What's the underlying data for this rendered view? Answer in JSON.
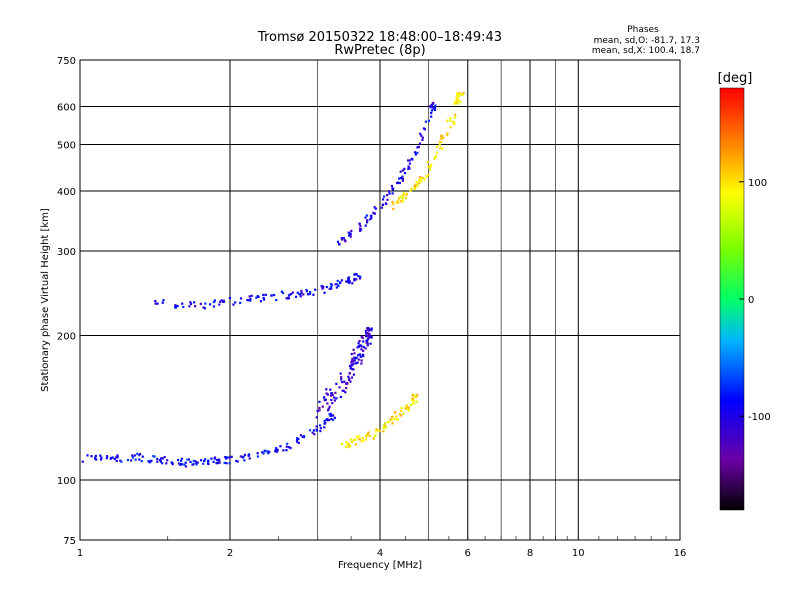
{
  "chart_data": {
    "type": "scatter",
    "title": "Tromsø 20150322 18:48:00–18:49:43",
    "subtitle": "RwPretec (8p)",
    "xlabel": "Frequency [MHz]",
    "ylabel": "Stationary phase Virtual Height [km]",
    "x_scale": "log",
    "y_scale": "log",
    "xlim": [
      1,
      16
    ],
    "ylim": [
      75,
      750
    ],
    "x_ticks": [
      1,
      2,
      4,
      6,
      8,
      10,
      16
    ],
    "x_tick_labels": [
      "1",
      "2",
      "4",
      "6",
      "8",
      "10",
      "16"
    ],
    "x_minor_gridlines": [
      3,
      5,
      7,
      9
    ],
    "y_ticks": [
      75,
      100,
      200,
      300,
      400,
      500,
      600,
      750
    ],
    "y_tick_labels": [
      "75",
      "100",
      "200",
      "300",
      "400",
      "500",
      "600",
      "750"
    ],
    "grid": true,
    "phase_box": {
      "title": "Phases",
      "line_o": "mean, sd,O: -81.7, 17.3",
      "line_x": "mean, sd,X: 100.4, 18.7"
    },
    "colorbar": {
      "unit_label": "[deg]",
      "range": [
        -180,
        180
      ],
      "ticks": [
        100,
        0,
        -100
      ],
      "tick_labels": [
        "100",
        "0",
        "-100"
      ]
    },
    "traces": [
      {
        "mode": "O",
        "layer": "E",
        "phase_mean": -90,
        "x": [
          1.0,
          1.1,
          1.2,
          1.3,
          1.4,
          1.5,
          1.6,
          1.7,
          1.8,
          1.9,
          2.0,
          2.2,
          2.4,
          2.6,
          2.8,
          3.0,
          3.2
        ],
        "y": [
          110,
          112,
          111,
          112,
          110,
          110,
          109,
          108,
          109,
          110,
          110,
          112,
          114,
          117,
          122,
          128,
          135
        ]
      },
      {
        "mode": "O",
        "layer": "E-spread",
        "phase_mean": -110,
        "x": [
          3.0,
          3.2,
          3.4,
          3.5,
          3.6,
          3.7,
          3.8
        ],
        "y": [
          140,
          150,
          160,
          170,
          180,
          190,
          200
        ]
      },
      {
        "mode": "X",
        "layer": "E",
        "phase_mean": 95,
        "x": [
          3.3,
          3.5,
          3.7,
          3.9,
          4.1,
          4.3,
          4.5,
          4.7
        ],
        "y": [
          118,
          120,
          122,
          125,
          130,
          135,
          140,
          148
        ]
      },
      {
        "mode": "O",
        "layer": "F1",
        "phase_mean": -95,
        "x": [
          1.4,
          1.6,
          1.8,
          2.0,
          2.2,
          2.4,
          2.6,
          2.8,
          3.0,
          3.2,
          3.4,
          3.6
        ],
        "y": [
          235,
          232,
          232,
          235,
          238,
          240,
          243,
          245,
          248,
          252,
          258,
          265
        ]
      },
      {
        "mode": "O",
        "layer": "F2",
        "phase_mean": -100,
        "x": [
          3.3,
          3.5,
          3.7,
          3.9,
          4.1,
          4.3,
          4.5,
          4.7,
          4.9,
          5.1
        ],
        "y": [
          310,
          325,
          340,
          360,
          385,
          410,
          440,
          480,
          530,
          600
        ]
      },
      {
        "mode": "X",
        "layer": "F2",
        "phase_mean": 100,
        "x": [
          4.2,
          4.4,
          4.6,
          4.8,
          5.0,
          5.2,
          5.4,
          5.6,
          5.8
        ],
        "y": [
          370,
          385,
          400,
          420,
          445,
          480,
          520,
          570,
          630
        ]
      }
    ]
  }
}
